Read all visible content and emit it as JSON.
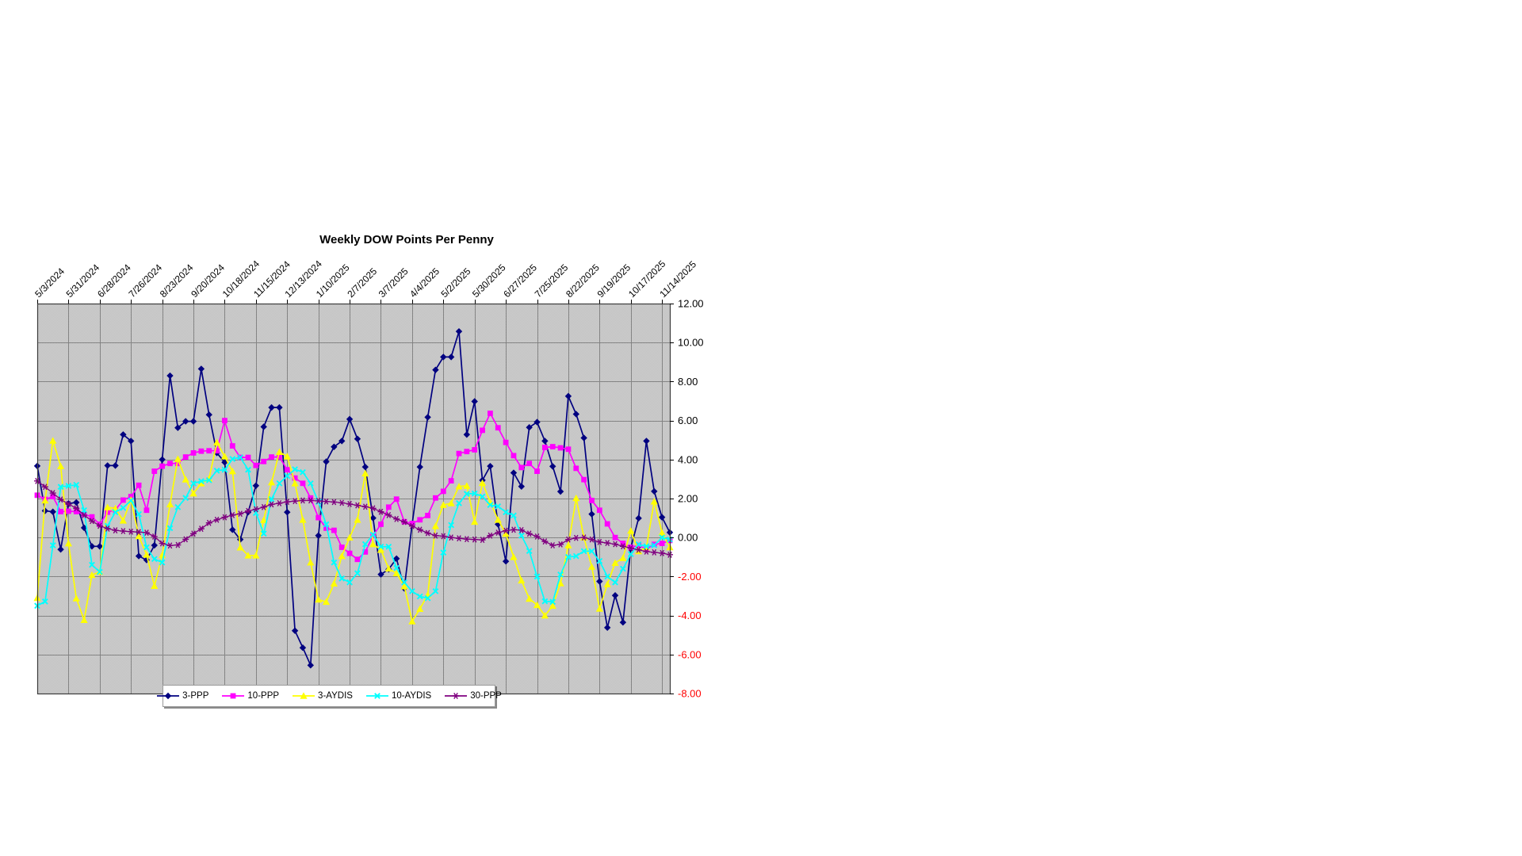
{
  "title": "Weekly DOW Points Per Penny",
  "chart_data": {
    "type": "line",
    "title": "Weekly DOW Points Per Penny",
    "x_labels": [
      "5/3/2024",
      "5/31/2024",
      "6/28/2024",
      "7/26/2024",
      "8/23/2024",
      "9/20/2024",
      "10/18/2024",
      "11/15/2024",
      "12/13/2024",
      "1/10/2025",
      "2/7/2025",
      "3/7/2025",
      "4/4/2025",
      "5/2/2025",
      "5/30/2025",
      "6/27/2025",
      "7/25/2025",
      "8/22/2025",
      "9/19/2025",
      "10/17/2025",
      "11/14/2025"
    ],
    "label_every_n_points": 4,
    "n_points": 82,
    "ylim": [
      -8,
      12
    ],
    "y_tick_step": 2,
    "y_tick_labels": [
      "12.00",
      "10.00",
      "8.00",
      "6.00",
      "4.00",
      "2.00",
      "0.00",
      "-2.00",
      "-4.00",
      "-6.00",
      "-8.00"
    ],
    "grid": true,
    "legend_position": "bottom",
    "plot_bg_colors": [
      "#cdcdcd",
      "#c2c2c2"
    ],
    "gridline_color": "#848484",
    "border_color": "#3c3c3c",
    "axis_label_colors": {
      "positive": "#000000",
      "negative": "#ff0000"
    },
    "series": [
      {
        "name": "3-PPP",
        "color": "#000080",
        "marker": "diamond",
        "values": [
          3.67,
          1.37,
          1.32,
          -0.61,
          1.74,
          1.8,
          0.5,
          -0.45,
          -0.45,
          3.69,
          3.69,
          5.28,
          4.95,
          -0.95,
          -1.15,
          -0.4,
          4.0,
          8.3,
          5.63,
          5.96,
          5.96,
          8.65,
          6.3,
          4.34,
          3.86,
          0.4,
          -0.1,
          1.3,
          2.66,
          5.68,
          6.67,
          6.67,
          1.3,
          -4.78,
          -5.65,
          -6.55,
          0.1,
          3.89,
          4.65,
          4.95,
          6.07,
          5.06,
          3.62,
          1.0,
          -1.89,
          -1.63,
          -1.08,
          -2.61,
          0.68,
          3.62,
          6.17,
          8.6,
          9.26,
          9.26,
          10.57,
          5.28,
          6.98,
          2.94,
          3.66,
          0.68,
          -1.22,
          3.32,
          2.62,
          5.65,
          5.92,
          4.95,
          3.65,
          2.36,
          7.25,
          6.33,
          5.11,
          1.2,
          -2.25,
          -4.62,
          -2.97,
          -4.35,
          -0.54,
          0.99,
          4.95,
          2.37,
          1.04,
          0.26
        ]
      },
      {
        "name": "10-PPP",
        "color": "#ff00ff",
        "marker": "square",
        "values": [
          2.17,
          1.96,
          2.1,
          1.33,
          1.35,
          1.33,
          1.19,
          1.06,
          0.68,
          1.3,
          1.42,
          1.92,
          2.1,
          2.68,
          1.4,
          3.4,
          3.66,
          3.8,
          3.8,
          4.13,
          4.34,
          4.43,
          4.45,
          4.45,
          6.0,
          4.7,
          4.11,
          4.11,
          3.7,
          3.9,
          4.13,
          4.13,
          3.48,
          3.05,
          2.78,
          2.03,
          1.02,
          0.48,
          0.37,
          -0.5,
          -0.81,
          -1.12,
          -0.74,
          0.1,
          0.68,
          1.56,
          1.97,
          0.81,
          0.72,
          0.91,
          1.13,
          2.03,
          2.37,
          2.91,
          4.31,
          4.41,
          4.5,
          5.5,
          6.37,
          5.63,
          4.88,
          4.2,
          3.59,
          3.8,
          3.4,
          4.62,
          4.66,
          4.6,
          4.53,
          3.55,
          2.97,
          1.9,
          1.4,
          0.7,
          0.0,
          -0.3,
          -0.5,
          -0.4,
          -0.6,
          -0.35,
          -0.3,
          -0.15
        ]
      },
      {
        "name": "3-AYDIS",
        "color": "#ffff00",
        "marker": "triangle",
        "values": [
          -3.1,
          1.9,
          4.97,
          3.66,
          -0.3,
          -3.12,
          -4.23,
          -1.92,
          -1.76,
          1.55,
          1.5,
          0.87,
          1.93,
          0.07,
          -0.88,
          -2.48,
          -0.9,
          1.7,
          4.03,
          2.98,
          2.26,
          2.78,
          3.02,
          4.88,
          4.16,
          3.4,
          -0.51,
          -0.92,
          -0.92,
          0.9,
          2.83,
          4.39,
          4.16,
          2.78,
          0.91,
          -1.28,
          -3.18,
          -3.3,
          -2.36,
          -0.95,
          0.0,
          0.91,
          3.29,
          -0.34,
          -0.63,
          -1.59,
          -1.83,
          -2.5,
          -4.3,
          -3.66,
          -2.94,
          0.59,
          1.67,
          1.76,
          2.62,
          2.65,
          0.81,
          2.8,
          1.83,
          0.91,
          0.2,
          -1.0,
          -2.2,
          -3.14,
          -3.46,
          -4.0,
          -3.5,
          -2.35,
          -0.4,
          2.02,
          0.0,
          -1.5,
          -3.65,
          -2.4,
          -1.3,
          -1.05,
          0.35,
          -0.7,
          -0.5,
          1.85,
          0.25,
          -0.5
        ]
      },
      {
        "name": "10-AYDIS",
        "color": "#00ffff",
        "marker": "x",
        "values": [
          -3.5,
          -3.28,
          -0.4,
          2.6,
          2.65,
          2.7,
          1.4,
          -1.4,
          -1.76,
          0.6,
          1.3,
          1.52,
          1.9,
          1.2,
          -0.5,
          -1.1,
          -1.28,
          0.48,
          1.56,
          2.03,
          2.78,
          2.89,
          2.94,
          3.43,
          3.48,
          4.03,
          4.11,
          3.48,
          1.26,
          0.2,
          1.97,
          2.78,
          3.16,
          3.5,
          3.35,
          2.78,
          1.83,
          0.68,
          -1.28,
          -2.1,
          -2.3,
          -1.83,
          -0.34,
          0.15,
          -0.47,
          -0.47,
          -1.56,
          -2.3,
          -2.75,
          -3.02,
          -3.11,
          -2.75,
          -0.77,
          0.64,
          1.76,
          2.24,
          2.26,
          2.1,
          1.67,
          1.6,
          1.3,
          1.13,
          0.1,
          -0.69,
          -2.0,
          -3.27,
          -3.3,
          -1.9,
          -1.0,
          -0.95,
          -0.7,
          -0.7,
          -1.2,
          -2.0,
          -2.3,
          -1.6,
          -0.85,
          -0.35,
          -0.45,
          -0.4,
          0.0,
          -0.1
        ]
      },
      {
        "name": "30-PPP",
        "color": "#800080",
        "marker": "asterisk",
        "values": [
          2.9,
          2.6,
          2.28,
          1.95,
          1.72,
          1.5,
          1.15,
          0.85,
          0.6,
          0.46,
          0.37,
          0.33,
          0.3,
          0.28,
          0.25,
          0.05,
          -0.3,
          -0.41,
          -0.38,
          -0.09,
          0.2,
          0.45,
          0.75,
          0.91,
          1.04,
          1.15,
          1.22,
          1.36,
          1.45,
          1.56,
          1.7,
          1.76,
          1.83,
          1.87,
          1.9,
          1.9,
          1.88,
          1.85,
          1.82,
          1.78,
          1.72,
          1.65,
          1.58,
          1.5,
          1.32,
          1.15,
          0.95,
          0.8,
          0.59,
          0.4,
          0.23,
          0.1,
          0.07,
          0.0,
          -0.04,
          -0.08,
          -0.1,
          -0.12,
          0.1,
          0.25,
          0.35,
          0.4,
          0.38,
          0.2,
          0.05,
          -0.2,
          -0.4,
          -0.35,
          -0.1,
          -0.02,
          0.0,
          -0.1,
          -0.23,
          -0.28,
          -0.34,
          -0.45,
          -0.54,
          -0.63,
          -0.72,
          -0.76,
          -0.8,
          -0.88
        ]
      }
    ]
  }
}
